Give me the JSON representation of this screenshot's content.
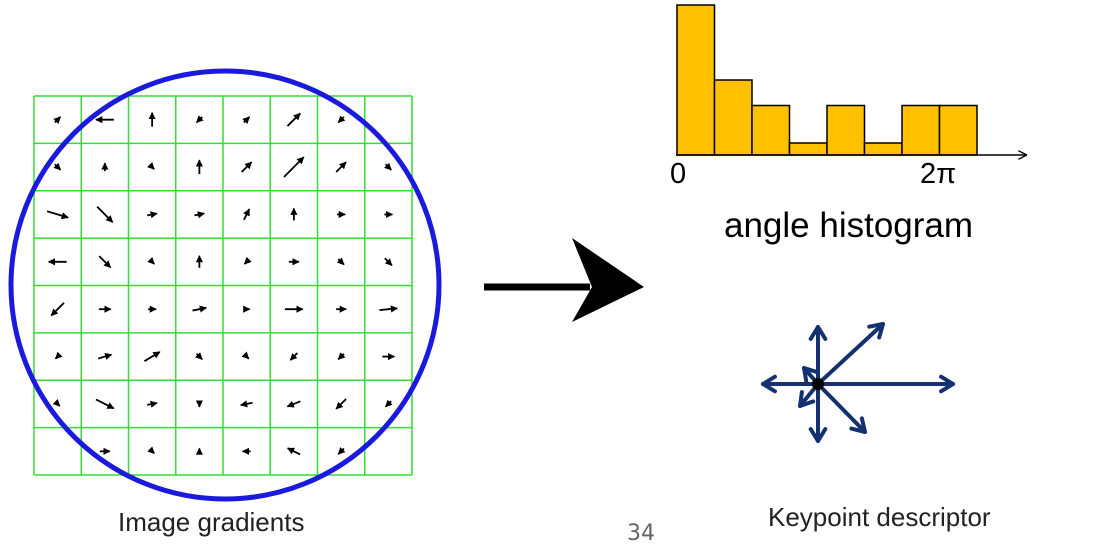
{
  "captions": {
    "gradients": "Image gradients",
    "descriptor": "Keypoint descriptor",
    "page_number": "34"
  },
  "histogram": {
    "title": "angle histogram",
    "tick_start": "0",
    "tick_end": "2π"
  },
  "chart_data": {
    "type": "bar",
    "title": "angle histogram",
    "x_tick_labels": [
      "0",
      "2π"
    ],
    "bin_count": 8,
    "values": [
      1.0,
      0.5,
      0.33,
      0.08,
      0.33,
      0.08,
      0.33,
      0.33
    ],
    "bar_color": "#FFC000"
  },
  "colors": {
    "grid": "#33dd33",
    "circle": "#1a1adc",
    "descriptor": "#14306e",
    "big_arrow": "#000000"
  }
}
